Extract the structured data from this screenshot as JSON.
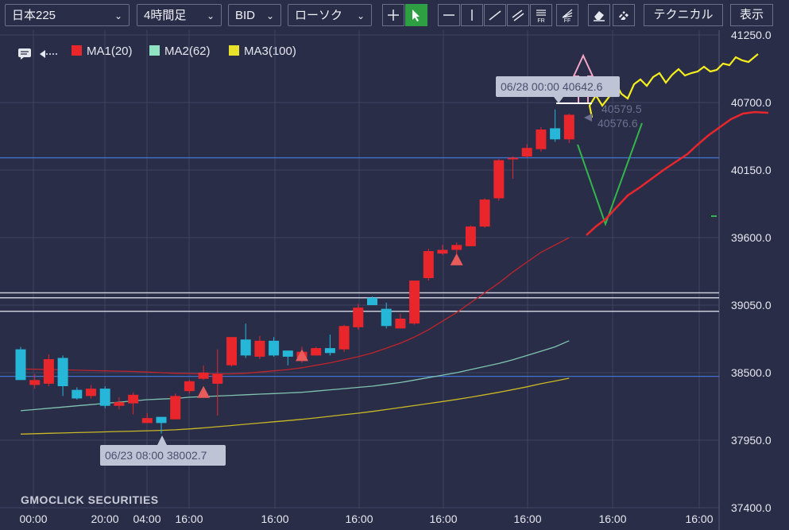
{
  "toolbar": {
    "symbol": "日本225",
    "timeframe": "4時間足",
    "price_type": "BID",
    "chart_style": "ローソク",
    "technical_label": "テクニカル",
    "display_label": "表示",
    "fr_label": "FR",
    "ff_label": "FF"
  },
  "legend": {
    "ma1": "MA1(20)",
    "ma2": "MA2(62)",
    "ma3": "MA3(100)"
  },
  "watermark": "GMOCLICK SECURITIES",
  "colors": {
    "background": "#2a2d47",
    "up_candle": "#26b7d8",
    "down_candle": "#e8262c",
    "ma1": "#c0242c",
    "ma2": "#7fc4b0",
    "ma3": "#c8b826",
    "accent_active": "#2ea043"
  },
  "chart_data": {
    "type": "candlestick",
    "y_ticks": [
      "41250.0",
      "40700.0",
      "40150.0",
      "39600.0",
      "39050.0",
      "38500.0",
      "37950.0",
      "37400.0"
    ],
    "ylim": [
      37400,
      41250
    ],
    "x_ticks": [
      "00:00",
      "20:00",
      "04:00",
      "16:00",
      "16:00",
      "16:00",
      "16:00",
      "16:00",
      "16:00",
      "16:00"
    ],
    "candles": [
      {
        "o": 38440,
        "h": 38710,
        "l": 38440,
        "c": 38690
      },
      {
        "o": 38440,
        "h": 38490,
        "l": 38370,
        "c": 38400
      },
      {
        "o": 38610,
        "h": 38650,
        "l": 38390,
        "c": 38410
      },
      {
        "o": 38390,
        "h": 38640,
        "l": 38310,
        "c": 38620
      },
      {
        "o": 38290,
        "h": 38380,
        "l": 38280,
        "c": 38360
      },
      {
        "o": 38370,
        "h": 38400,
        "l": 38290,
        "c": 38310
      },
      {
        "o": 38230,
        "h": 38390,
        "l": 38210,
        "c": 38370
      },
      {
        "o": 38260,
        "h": 38300,
        "l": 38200,
        "c": 38230
      },
      {
        "o": 38320,
        "h": 38340,
        "l": 38160,
        "c": 38250
      },
      {
        "o": 38130,
        "h": 38170,
        "l": 38090,
        "c": 38090
      },
      {
        "o": 38090,
        "h": 38140,
        "l": 38003,
        "c": 38140
      },
      {
        "o": 38310,
        "h": 38330,
        "l": 38120,
        "c": 38120
      },
      {
        "o": 38430,
        "h": 38440,
        "l": 38330,
        "c": 38350
      },
      {
        "o": 38500,
        "h": 38560,
        "l": 38440,
        "c": 38450
      },
      {
        "o": 38490,
        "h": 38690,
        "l": 38150,
        "c": 38410
      },
      {
        "o": 38790,
        "h": 38790,
        "l": 38550,
        "c": 38560
      },
      {
        "o": 38640,
        "h": 38900,
        "l": 38620,
        "c": 38770
      },
      {
        "o": 38760,
        "h": 38800,
        "l": 38610,
        "c": 38630
      },
      {
        "o": 38640,
        "h": 38790,
        "l": 38630,
        "c": 38760
      },
      {
        "o": 38630,
        "h": 38650,
        "l": 38560,
        "c": 38680
      },
      {
        "o": 38670,
        "h": 38710,
        "l": 38580,
        "c": 38620
      },
      {
        "o": 38700,
        "h": 38710,
        "l": 38640,
        "c": 38640
      },
      {
        "o": 38660,
        "h": 38810,
        "l": 38640,
        "c": 38700
      },
      {
        "o": 38880,
        "h": 38890,
        "l": 38670,
        "c": 38690
      },
      {
        "o": 39030,
        "h": 39060,
        "l": 38850,
        "c": 38870
      },
      {
        "o": 39050,
        "h": 39120,
        "l": 39050,
        "c": 39110
      },
      {
        "o": 38880,
        "h": 39070,
        "l": 38860,
        "c": 39020
      },
      {
        "o": 38940,
        "h": 38980,
        "l": 38860,
        "c": 38860
      },
      {
        "o": 39250,
        "h": 39250,
        "l": 38890,
        "c": 38900
      },
      {
        "o": 39490,
        "h": 39510,
        "l": 39250,
        "c": 39270
      },
      {
        "o": 39500,
        "h": 39540,
        "l": 39460,
        "c": 39470
      },
      {
        "o": 39540,
        "h": 39560,
        "l": 39460,
        "c": 39500
      },
      {
        "o": 39690,
        "h": 39700,
        "l": 39530,
        "c": 39530
      },
      {
        "o": 39910,
        "h": 39920,
        "l": 39680,
        "c": 39690
      },
      {
        "o": 40230,
        "h": 40240,
        "l": 39900,
        "c": 39920
      },
      {
        "o": 40250,
        "h": 40260,
        "l": 40080,
        "c": 40240
      },
      {
        "o": 40330,
        "h": 40360,
        "l": 40250,
        "c": 40260
      },
      {
        "o": 40480,
        "h": 40500,
        "l": 40300,
        "c": 40320
      },
      {
        "o": 40400,
        "h": 40643,
        "l": 40380,
        "c": 40490
      },
      {
        "o": 40600,
        "h": 40610,
        "l": 40370,
        "c": 40400
      }
    ],
    "ma1": [
      38530,
      38528,
      38526,
      38523,
      38520,
      38517,
      38515,
      38512,
      38510,
      38505,
      38500,
      38495,
      38493,
      38490,
      38490,
      38490,
      38495,
      38505,
      38515,
      38525,
      38540,
      38560,
      38580,
      38605,
      38630,
      38660,
      38700,
      38740,
      38790,
      38850,
      38920,
      38990,
      39070,
      39150,
      39230,
      39320,
      39400,
      39480,
      39540,
      39600
    ],
    "ma2": [
      38190,
      38200,
      38210,
      38220,
      38230,
      38240,
      38250,
      38260,
      38270,
      38280,
      38285,
      38290,
      38300,
      38305,
      38310,
      38315,
      38320,
      38325,
      38330,
      38335,
      38340,
      38350,
      38360,
      38370,
      38380,
      38390,
      38405,
      38420,
      38440,
      38460,
      38480,
      38500,
      38525,
      38550,
      38575,
      38605,
      38640,
      38675,
      38710,
      38760
    ],
    "ma3": [
      38000,
      38003,
      38006,
      38009,
      38012,
      38015,
      38018,
      38021,
      38024,
      38027,
      38030,
      38035,
      38042,
      38050,
      38060,
      38070,
      38080,
      38090,
      38100,
      38110,
      38120,
      38132,
      38145,
      38158,
      38170,
      38184,
      38200,
      38216,
      38232,
      38248,
      38265,
      38282,
      38300,
      38320,
      38340,
      38362,
      38385,
      38410,
      38432,
      38455
    ],
    "annotations": {
      "high_label": "06/28 00:00 40642.6",
      "low_label": "06/23 08:00 38002.7",
      "price_label_1": "40579.5",
      "price_label_2": "40576.6"
    },
    "h_lines": [
      40250,
      39150,
      39110,
      39000,
      38470
    ],
    "grid": true
  }
}
